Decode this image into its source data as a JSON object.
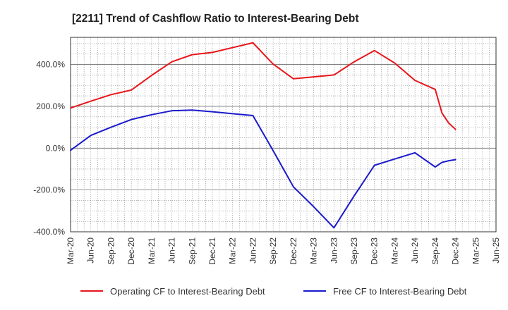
{
  "chart_data": {
    "type": "line",
    "title": "[2211]  Trend of Cashflow Ratio to Interest-Bearing Debt",
    "xlabel": "",
    "ylabel": "",
    "x_ticks": [
      "Mar-20",
      "Jun-20",
      "Sep-20",
      "Dec-20",
      "Mar-21",
      "Jun-21",
      "Sep-21",
      "Dec-21",
      "Mar-22",
      "Jun-22",
      "Sep-22",
      "Dec-22",
      "Mar-23",
      "Jun-23",
      "Sep-23",
      "Dec-23",
      "Mar-24",
      "Jun-24",
      "Sep-24",
      "Dec-24",
      "Mar-25",
      "Jun-25"
    ],
    "x_range": [
      "Mar-20",
      "Jun-25"
    ],
    "y_ticks": [
      -400,
      -200,
      0,
      200,
      400
    ],
    "y_tick_labels": [
      "-400.0%",
      "-200.0%",
      "0.0%",
      "200.0%",
      "400.0%"
    ],
    "ylim": [
      -400,
      530
    ],
    "grid": true,
    "legend_position": "bottom",
    "series": [
      {
        "name": "Operating CF to Interest-Bearing Debt",
        "color": "#e8161b",
        "points": [
          [
            "Mar-20",
            192
          ],
          [
            "Jun-20",
            225
          ],
          [
            "Sep-20",
            256
          ],
          [
            "Dec-20",
            278
          ],
          [
            "Mar-21",
            348
          ],
          [
            "Jun-21",
            413
          ],
          [
            "Sep-21",
            447
          ],
          [
            "Dec-21",
            458
          ],
          [
            "Mar-22",
            481
          ],
          [
            "Jun-22",
            504
          ],
          [
            "Sep-22",
            402
          ],
          [
            "Dec-22",
            332
          ],
          [
            "Mar-23",
            341
          ],
          [
            "Jun-23",
            350
          ],
          [
            "Sep-23",
            413
          ],
          [
            "Dec-23",
            467
          ],
          [
            "Mar-24",
            407
          ],
          [
            "Jun-24",
            324
          ],
          [
            "Sep-24",
            281
          ],
          [
            "Oct-24",
            168
          ],
          [
            "Nov-24",
            120
          ],
          [
            "Dec-24",
            90
          ]
        ]
      },
      {
        "name": "Free CF to Interest-Bearing Debt",
        "color": "#1a1acc",
        "points": [
          [
            "Mar-20",
            -10
          ],
          [
            "Jun-20",
            61
          ],
          [
            "Sep-20",
            100
          ],
          [
            "Dec-20",
            137
          ],
          [
            "Mar-21",
            160
          ],
          [
            "Jun-21",
            179
          ],
          [
            "Sep-21",
            182
          ],
          [
            "Dec-21",
            174
          ],
          [
            "Mar-22",
            165
          ],
          [
            "Jun-22",
            156
          ],
          [
            "Sep-22",
            -12
          ],
          [
            "Dec-22",
            -185
          ],
          [
            "Mar-23",
            -280
          ],
          [
            "Jun-23",
            -381
          ],
          [
            "Sep-23",
            -228
          ],
          [
            "Dec-23",
            -82
          ],
          [
            "Mar-24",
            -52
          ],
          [
            "Jun-24",
            -22
          ],
          [
            "Sep-24",
            -90
          ],
          [
            "Oct-24",
            -68
          ],
          [
            "Nov-24",
            -60
          ],
          [
            "Dec-24",
            -55
          ]
        ]
      }
    ]
  }
}
